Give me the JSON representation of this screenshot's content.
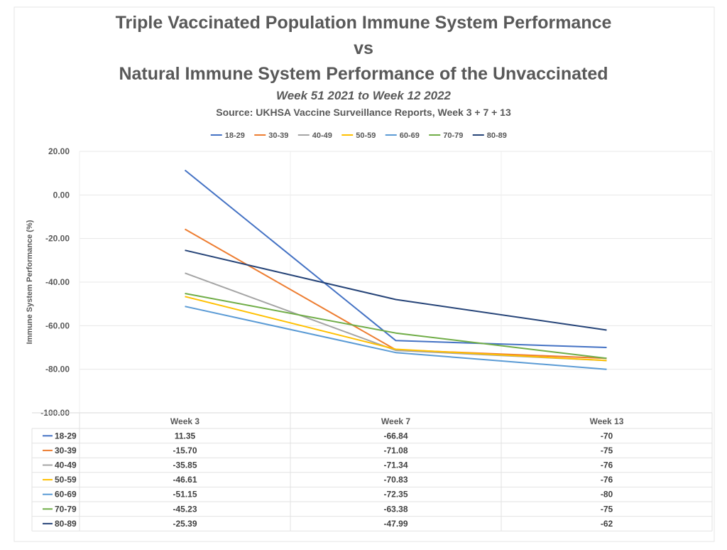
{
  "chart_data": {
    "type": "line",
    "title": [
      "Triple Vaccinated Population Immune System Performance",
      "vs",
      "Natural Immune System Performance of the Unvaccinated"
    ],
    "subtitle": "Week 51 2021 to Week 12 2022",
    "source": "Source: UKHSA Vaccine Surveillance Reports, Week 3 + 7 + 13",
    "ylabel": "Immune System Performance (%)",
    "xlabel": "",
    "categories": [
      "Week 3",
      "Week 7",
      "Week 13"
    ],
    "ylim": [
      -100,
      20
    ],
    "yticks": [
      20,
      0,
      -20,
      -40,
      -60,
      -80,
      -100
    ],
    "ytick_labels": [
      "20.00",
      "0.00",
      "-20.00",
      "-40.00",
      "-60.00",
      "-80.00",
      "-100.00"
    ],
    "grid": true,
    "legend_position": "top",
    "series": [
      {
        "name": "18-29",
        "color": "#4472C4",
        "values": [
          11.35,
          -66.84,
          -70
        ],
        "labels": [
          "11.35",
          "-66.84",
          "-70"
        ]
      },
      {
        "name": "30-39",
        "color": "#ED7D31",
        "values": [
          -15.7,
          -71.08,
          -75
        ],
        "labels": [
          "-15.70",
          "-71.08",
          "-75"
        ]
      },
      {
        "name": "40-49",
        "color": "#A5A5A5",
        "values": [
          -35.85,
          -71.34,
          -76
        ],
        "labels": [
          "-35.85",
          "-71.34",
          "-76"
        ]
      },
      {
        "name": "50-59",
        "color": "#FFC000",
        "values": [
          -46.61,
          -70.83,
          -76
        ],
        "labels": [
          "-46.61",
          "-70.83",
          "-76"
        ]
      },
      {
        "name": "60-69",
        "color": "#5B9BD5",
        "values": [
          -51.15,
          -72.35,
          -80
        ],
        "labels": [
          "-51.15",
          "-72.35",
          "-80"
        ]
      },
      {
        "name": "70-79",
        "color": "#70AD47",
        "values": [
          -45.23,
          -63.38,
          -75
        ],
        "labels": [
          "-45.23",
          "-63.38",
          "-75"
        ]
      },
      {
        "name": "80-89",
        "color": "#264478",
        "values": [
          -25.39,
          -47.99,
          -62
        ],
        "labels": [
          "-25.39",
          "-47.99",
          "-62"
        ]
      }
    ]
  }
}
